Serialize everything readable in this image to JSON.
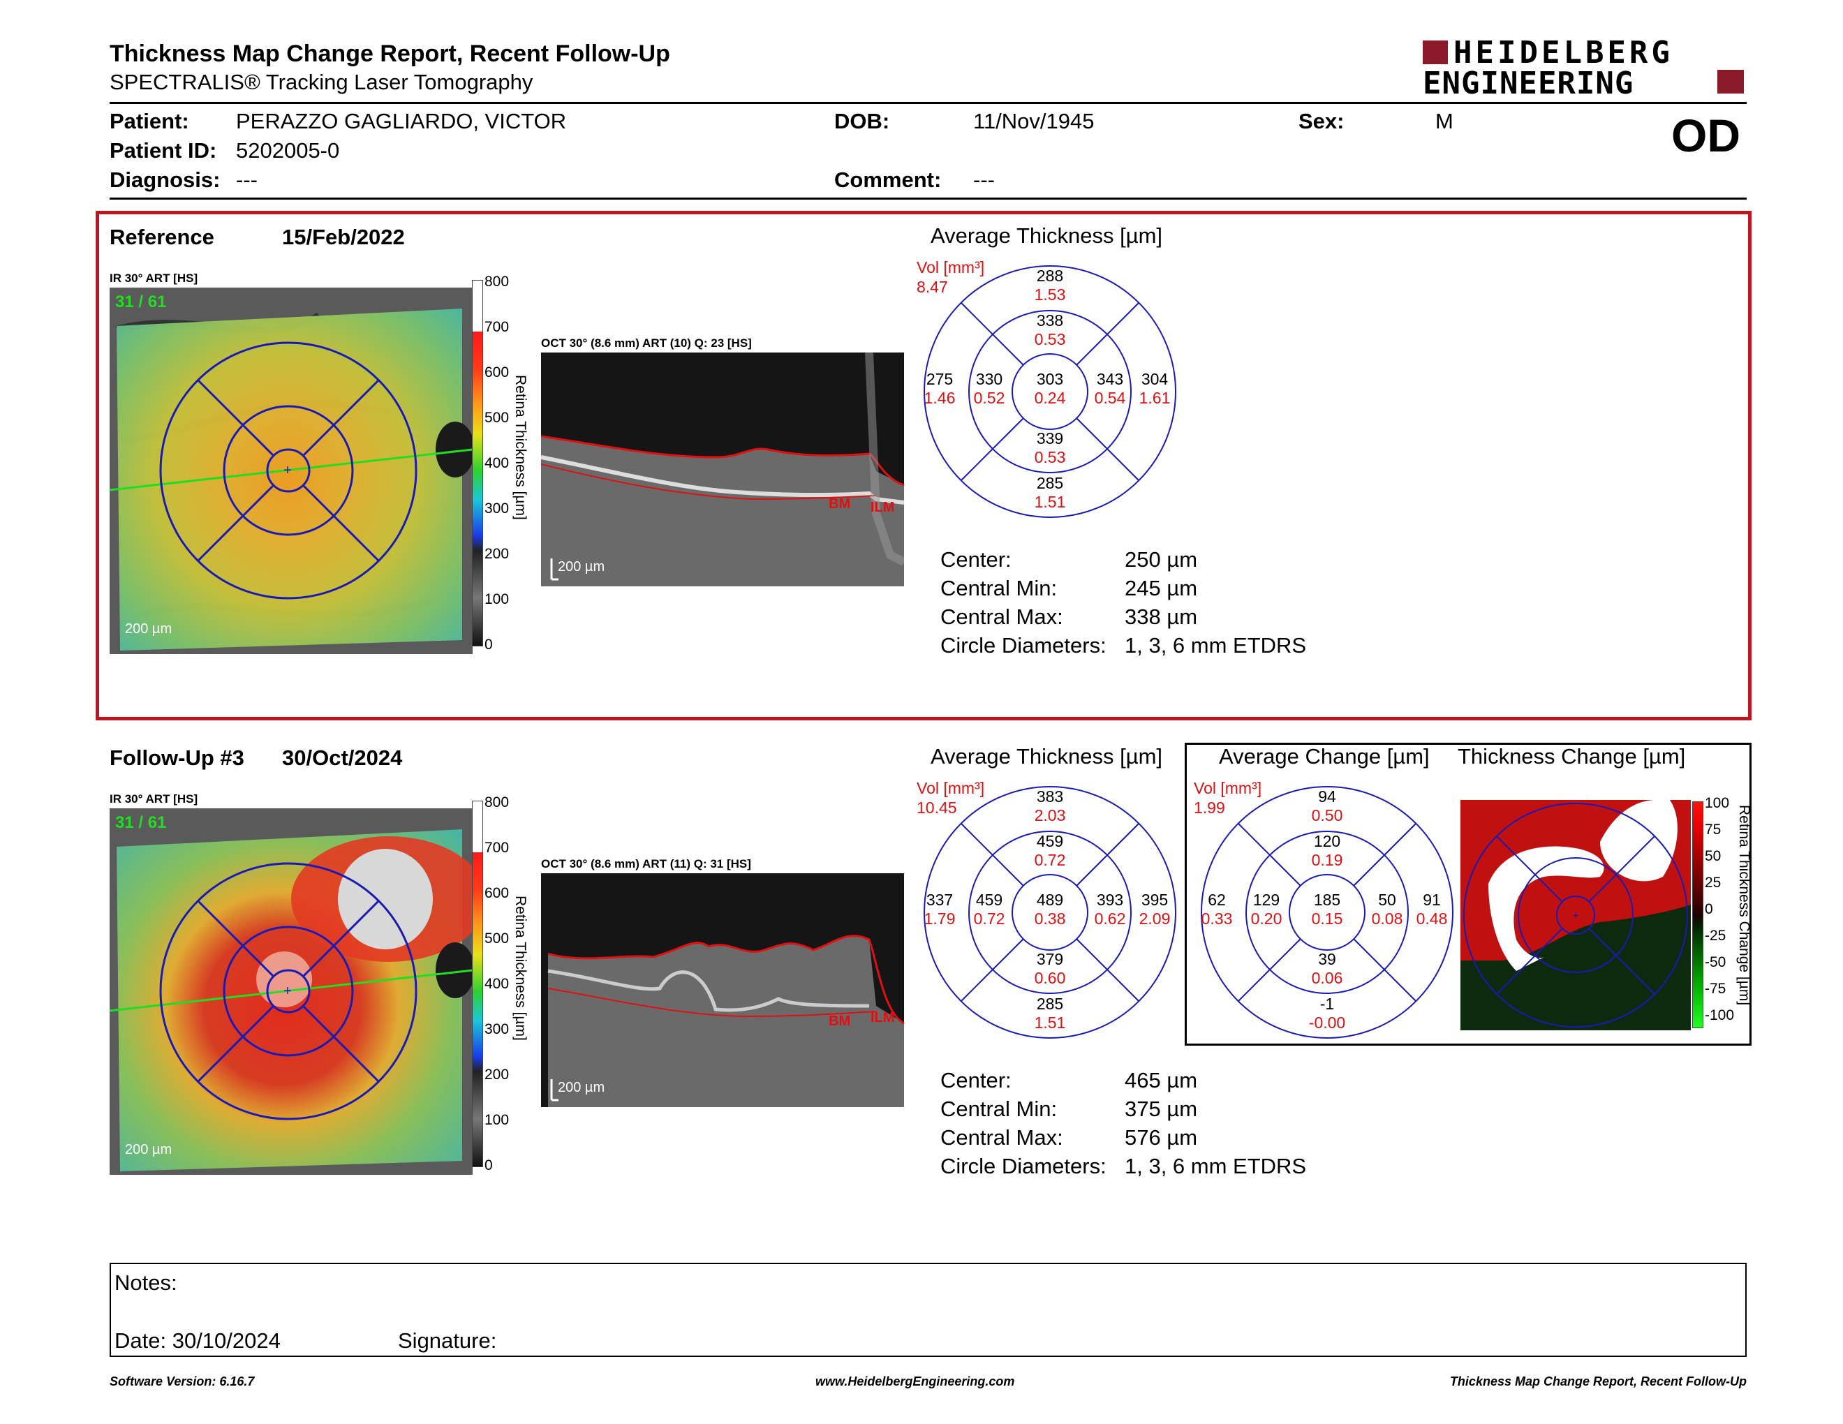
{
  "header": {
    "title": "Thickness Map Change Report, Recent Follow-Up",
    "subtitle": "SPECTRALIS® Tracking Laser Tomography",
    "logo_line1": "HEIDELBERG",
    "logo_line2": "ENGINEERING",
    "eye": "OD"
  },
  "patient": {
    "patient_label": "Patient:",
    "patient_name": "PERAZZO GAGLIARDO, VICTOR",
    "dob_label": "DOB:",
    "dob": "11/Nov/1945",
    "sex_label": "Sex:",
    "sex": "M",
    "id_label": "Patient ID:",
    "id": "5202005-0",
    "diagnosis_label": "Diagnosis:",
    "diagnosis": "---",
    "comment_label": "Comment:",
    "comment": "---"
  },
  "reference": {
    "label": "Reference",
    "date": "15/Feb/2022",
    "slo_label": "IR 30° ART [HS]",
    "slo_counter": "31 / 61",
    "scale": "200 µm",
    "oct_label": "OCT 30° (8.6 mm) ART (10) Q: 23 [HS]",
    "bm": "BM",
    "ilm": "ILM",
    "avg_title": "Average Thickness [µm]",
    "vol_label": "Vol [mm³]",
    "vol_total": "8.47",
    "grid": {
      "outer_sup": [
        "288",
        "1.53"
      ],
      "inner_sup": [
        "338",
        "0.53"
      ],
      "outer_temp": [
        "275",
        "1.46"
      ],
      "inner_temp": [
        "330",
        "0.52"
      ],
      "center": [
        "303",
        "0.24"
      ],
      "inner_nas": [
        "343",
        "0.54"
      ],
      "outer_nas": [
        "304",
        "1.61"
      ],
      "inner_inf": [
        "339",
        "0.53"
      ],
      "outer_inf": [
        "285",
        "1.51"
      ]
    },
    "stats": {
      "center_label": "Center:",
      "center": "250 µm",
      "min_label": "Central Min:",
      "min": "245 µm",
      "max_label": "Central Max:",
      "max": "338 µm",
      "diam_label": "Circle Diameters:",
      "diam": "1, 3, 6 mm ETDRS"
    }
  },
  "followup": {
    "label": "Follow-Up #3",
    "date": "30/Oct/2024",
    "slo_label": "IR 30° ART [HS]",
    "slo_counter": "31 / 61",
    "scale": "200 µm",
    "oct_label": "OCT 30° (8.6 mm) ART (11) Q: 31 [HS]",
    "bm": "BM",
    "ilm": "ILM",
    "avg_title": "Average Thickness [µm]",
    "vol_label": "Vol [mm³]",
    "vol_total": "10.45",
    "grid": {
      "outer_sup": [
        "383",
        "2.03"
      ],
      "inner_sup": [
        "459",
        "0.72"
      ],
      "outer_temp": [
        "337",
        "1.79"
      ],
      "inner_temp": [
        "459",
        "0.72"
      ],
      "center": [
        "489",
        "0.38"
      ],
      "inner_nas": [
        "393",
        "0.62"
      ],
      "outer_nas": [
        "395",
        "2.09"
      ],
      "inner_inf": [
        "379",
        "0.60"
      ],
      "outer_inf": [
        "285",
        "1.51"
      ]
    },
    "stats": {
      "center_label": "Center:",
      "center": "465 µm",
      "min_label": "Central Min:",
      "min": "375 µm",
      "max_label": "Central Max:",
      "max": "576 µm",
      "diam_label": "Circle Diameters:",
      "diam": "1, 3, 6 mm ETDRS"
    },
    "change_title": "Average Change [µm]",
    "change_vol_label": "Vol [mm³]",
    "change_vol_total": "1.99",
    "change_grid": {
      "outer_sup": [
        "94",
        "0.50"
      ],
      "inner_sup": [
        "120",
        "0.19"
      ],
      "outer_temp": [
        "62",
        "0.33"
      ],
      "inner_temp": [
        "129",
        "0.20"
      ],
      "center": [
        "185",
        "0.15"
      ],
      "inner_nas": [
        "50",
        "0.08"
      ],
      "outer_nas": [
        "91",
        "0.48"
      ],
      "inner_inf": [
        "39",
        "0.06"
      ],
      "outer_inf": [
        "-1",
        "-0.00"
      ]
    },
    "thickness_change_title": "Thickness Change [µm]"
  },
  "thickness_scale": {
    "label": "Retina Thickness [µm]",
    "ticks": [
      "800",
      "700",
      "600",
      "500",
      "400",
      "300",
      "200",
      "100",
      "0"
    ]
  },
  "change_scale": {
    "label": "Retina Thickness Change [µm]",
    "ticks": [
      "100",
      "75",
      "50",
      "25",
      "0",
      "-25",
      "-50",
      "-75",
      "-100"
    ]
  },
  "notes": {
    "label": "Notes:",
    "date_label": "Date: 30/10/2024",
    "signature_label": "Signature:"
  },
  "footer": {
    "software": "Software Version: 6.16.7",
    "url": "www.HeidelbergEngineering.com",
    "report": "Thickness Map Change Report, Recent Follow-Up"
  },
  "colors": {
    "frame": "#c0141f",
    "grid_line": "#1a1ab4",
    "vol": "#d11111",
    "logo": "#8b1a2b"
  }
}
